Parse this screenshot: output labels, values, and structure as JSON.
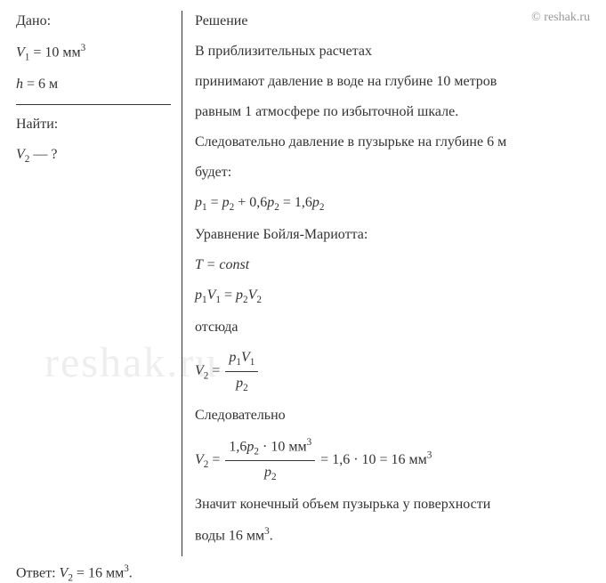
{
  "watermark_top": "© reshak.ru",
  "watermark_bg": "reshak.ru",
  "given": {
    "title": "Дано:",
    "v1_label": "V",
    "v1_sub": "1",
    "v1_eq": " = 10 мм",
    "v1_sup": "3",
    "h_label": "h",
    "h_eq": " = 6 м"
  },
  "find": {
    "title": "Найти:",
    "v2_label": "V",
    "v2_sub": "2",
    "v2_eq": " — ?"
  },
  "solution": {
    "title": "Решение",
    "para1": "В приблизительных расчетах",
    "para2": "принимают давление в воде на глубине 10 метров",
    "para3": "равным 1 атмосфере по избыточной шкале.",
    "para4": "Следовательно давление в пузырьке на глубине 6 м",
    "para5": "будет:",
    "eq1_lhs_p1": "p",
    "eq1_lhs_sub1": "1",
    "eq1_mid1": " = ",
    "eq1_p2a": "p",
    "eq1_sub2a": "2",
    "eq1_mid2": " + 0,6",
    "eq1_p2b": "p",
    "eq1_sub2b": "2",
    "eq1_mid3": " = 1,6",
    "eq1_p2c": "p",
    "eq1_sub2c": "2",
    "para6": "Уравнение Бойля-Мариотта:",
    "eq2_T": "T",
    "eq2_const": " = const",
    "eq3_p1": "p",
    "eq3_sub_p1": "1",
    "eq3_V1": "V",
    "eq3_sub_V1": "1",
    "eq3_mid": " = ",
    "eq3_p2": "p",
    "eq3_sub_p2": "2",
    "eq3_V2": "V",
    "eq3_sub_V2": "2",
    "para7": "отсюда",
    "eq4_V2": "V",
    "eq4_sub_V2": "2",
    "eq4_mid": " = ",
    "eq4_num_p1": "p",
    "eq4_num_sub_p1": "1",
    "eq4_num_V1": "V",
    "eq4_num_sub_V1": "1",
    "eq4_den_p2": "p",
    "eq4_den_sub_p2": "2",
    "para8": "Следовательно",
    "eq5_V2": "V",
    "eq5_sub_V2": "2",
    "eq5_mid1": " = ",
    "eq5_num_pre": "1,6",
    "eq5_num_p2": "p",
    "eq5_num_sub_p2": "2",
    "eq5_num_post": " · 10 мм",
    "eq5_num_sup": "3",
    "eq5_den_p2": "p",
    "eq5_den_sub_p2": "2",
    "eq5_mid2": " = 1,6 · 10 = 16 мм",
    "eq5_sup": "3",
    "para9": "Значит конечный объем пузырька у поверхности",
    "para10_pre": "воды 16 мм",
    "para10_sup": "3",
    "para10_post": "."
  },
  "answer": {
    "label": "Ответ: ",
    "V2": "V",
    "sub": "2",
    "eq": " = 16 мм",
    "sup": "3",
    "post": "."
  }
}
